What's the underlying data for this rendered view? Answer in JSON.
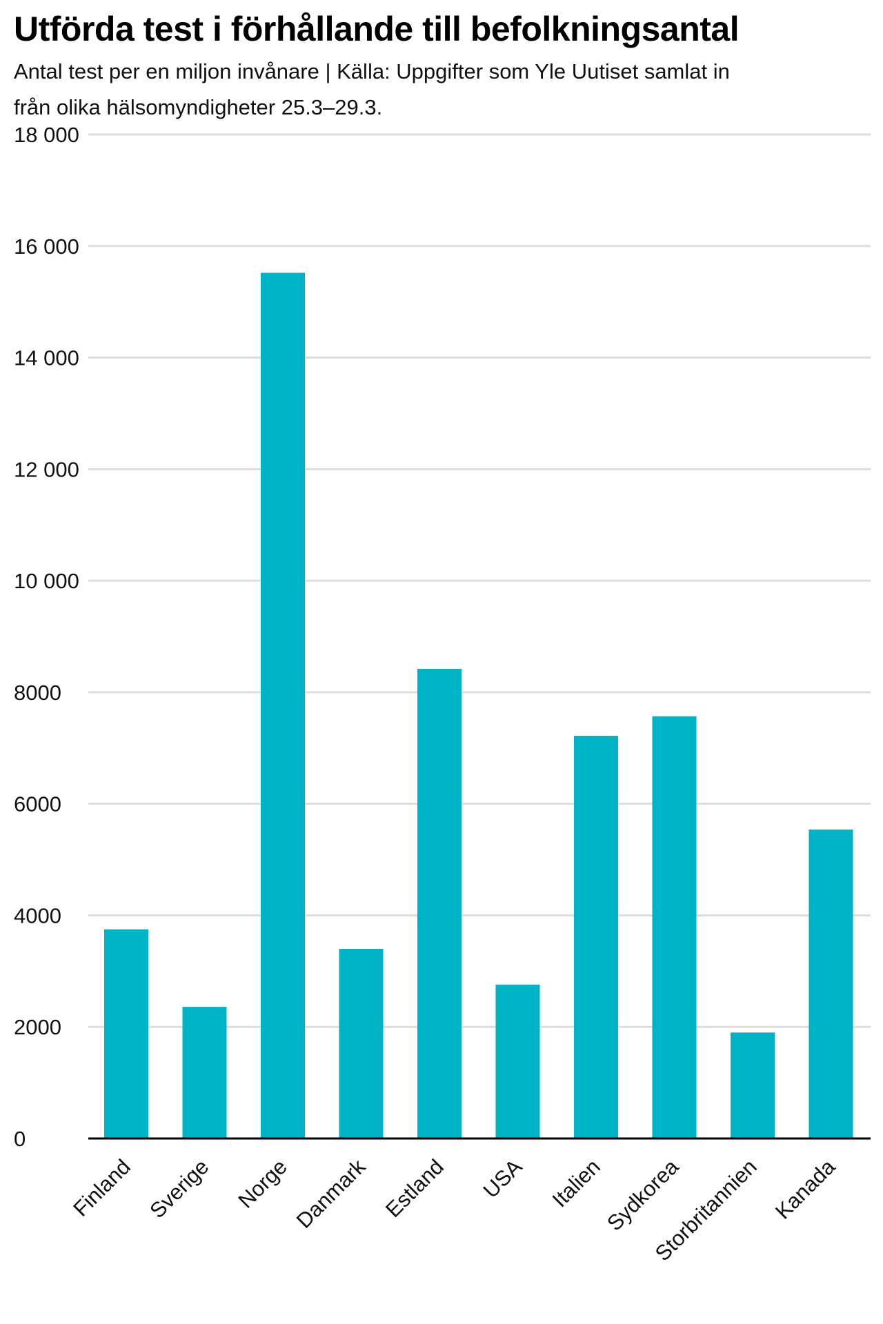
{
  "header": {
    "title": "Utförda test i förhållande till befolkningsantal",
    "subtitle": "Antal test per en miljon invånare | Källa: Uppgifter som Yle Uutiset samlat in från olika hälsomyndigheter 25.3–29.3."
  },
  "colors": {
    "bar": "#00b4c8",
    "grid": "#dddddd",
    "axis": "#000000"
  },
  "chart_data": {
    "type": "bar",
    "title": "Utförda test i förhållande till befolkningsantal",
    "subtitle": "Antal test per en miljon invånare | Källa: Uppgifter som Yle Uutiset samlat in från olika hälsomyndigheter 25.3–29.3.",
    "xlabel": "",
    "ylabel": "",
    "categories": [
      "Finland",
      "Sverige",
      "Norge",
      "Danmark",
      "Estland",
      "USA",
      "Italien",
      "Sydkorea",
      "Storbritannien",
      "Kanada"
    ],
    "values": [
      3750,
      2360,
      15520,
      3400,
      8420,
      2760,
      7220,
      7570,
      1900,
      5540
    ],
    "ylim": [
      0,
      18000
    ],
    "yticks": [
      0,
      2000,
      4000,
      6000,
      8000,
      10000,
      12000,
      14000,
      16000,
      18000
    ],
    "ytick_labels": [
      "0",
      "2000",
      "4000",
      "6000",
      "8000",
      "10 000",
      "12 000",
      "14 000",
      "16 000",
      "18 000"
    ],
    "grid": true,
    "legend": "none"
  }
}
